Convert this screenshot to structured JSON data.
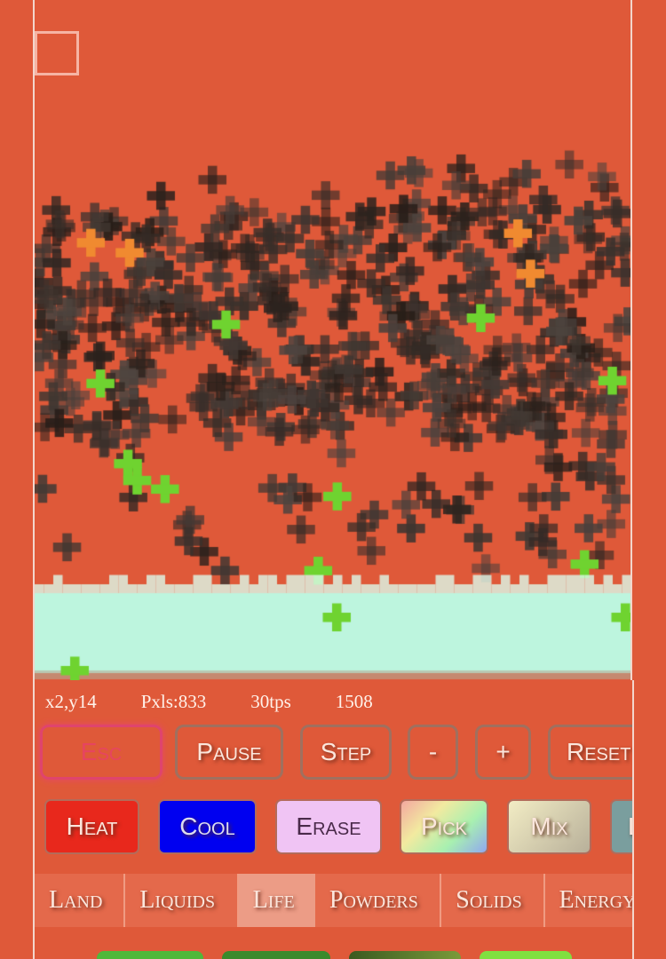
{
  "stats": {
    "coords": "x2,y14",
    "pixels": "Pxls:833",
    "tps": "30tps",
    "ticks": "1508"
  },
  "controls": [
    {
      "label": "Esc",
      "icon": "",
      "active": true
    },
    {
      "label": "Pause"
    },
    {
      "label": "Step"
    },
    {
      "label": "-"
    },
    {
      "label": "+"
    },
    {
      "label": "Reset"
    }
  ],
  "tools": [
    {
      "label": "Heat",
      "color": "#e8281c"
    },
    {
      "label": "Cool",
      "color": "#0000f0"
    },
    {
      "label": "Erase",
      "color": "#f0c4f4"
    },
    {
      "label": "Pick",
      "color": "rainbow"
    },
    {
      "label": "Mix",
      "color": "#e8e0b8"
    },
    {
      "label": "Lookup",
      "color": "#7a9e9e"
    }
  ],
  "categories": [
    {
      "label": "Land"
    },
    {
      "label": "Liquids"
    },
    {
      "label": "Life",
      "selected": true
    },
    {
      "label": "Powders"
    },
    {
      "label": "Solids"
    },
    {
      "label": "Energy"
    }
  ],
  "colors": {
    "background": "#df5939",
    "water": "#bdf5de",
    "particle": "#3b2c27",
    "plant": "#6fd330",
    "fire": "#f08a30"
  }
}
